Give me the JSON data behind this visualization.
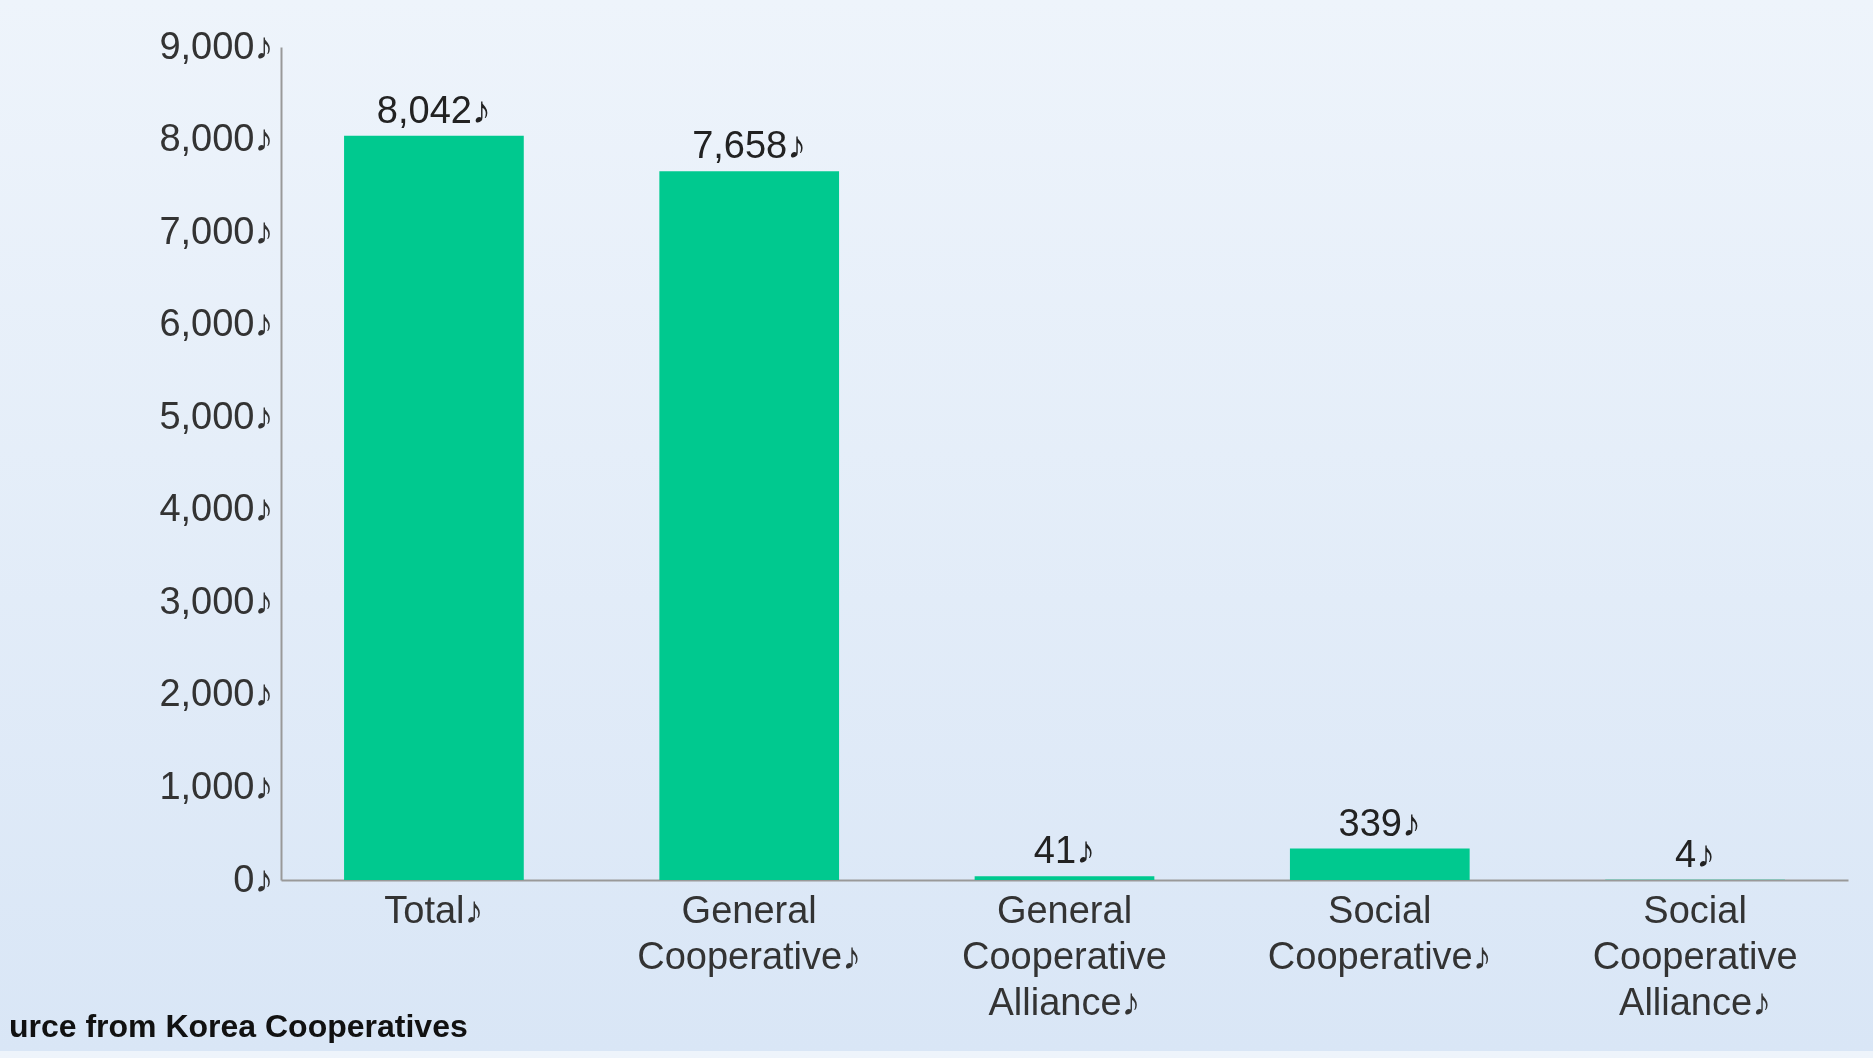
{
  "chart_data": {
    "type": "bar",
    "categories": [
      "Total♪",
      "General Cooperative♪",
      "General Cooperative Alliance♪",
      "Social Cooperative♪",
      "Social Cooperative Alliance♪"
    ],
    "values": [
      8042,
      7658,
      41,
      339,
      4
    ],
    "value_labels": [
      "8,042♪",
      "7,658♪",
      "41♪",
      "339♪",
      "4♪"
    ],
    "color": "#00c98f",
    "ylim": [
      0,
      9000
    ],
    "yticks": [
      {
        "value": 0,
        "label": "0♪"
      },
      {
        "value": 1000,
        "label": "1,000♪"
      },
      {
        "value": 2000,
        "label": "2,000♪"
      },
      {
        "value": 3000,
        "label": "3,000♪"
      },
      {
        "value": 4000,
        "label": "4,000♪"
      },
      {
        "value": 5000,
        "label": "5,000♪"
      },
      {
        "value": 6000,
        "label": "6,000♪"
      },
      {
        "value": 7000,
        "label": "7,000♪"
      },
      {
        "value": 8000,
        "label": "8,000♪"
      },
      {
        "value": 9000,
        "label": "9,000♪"
      }
    ],
    "annotations": [
      "urce from Korea Cooperatives"
    ]
  }
}
